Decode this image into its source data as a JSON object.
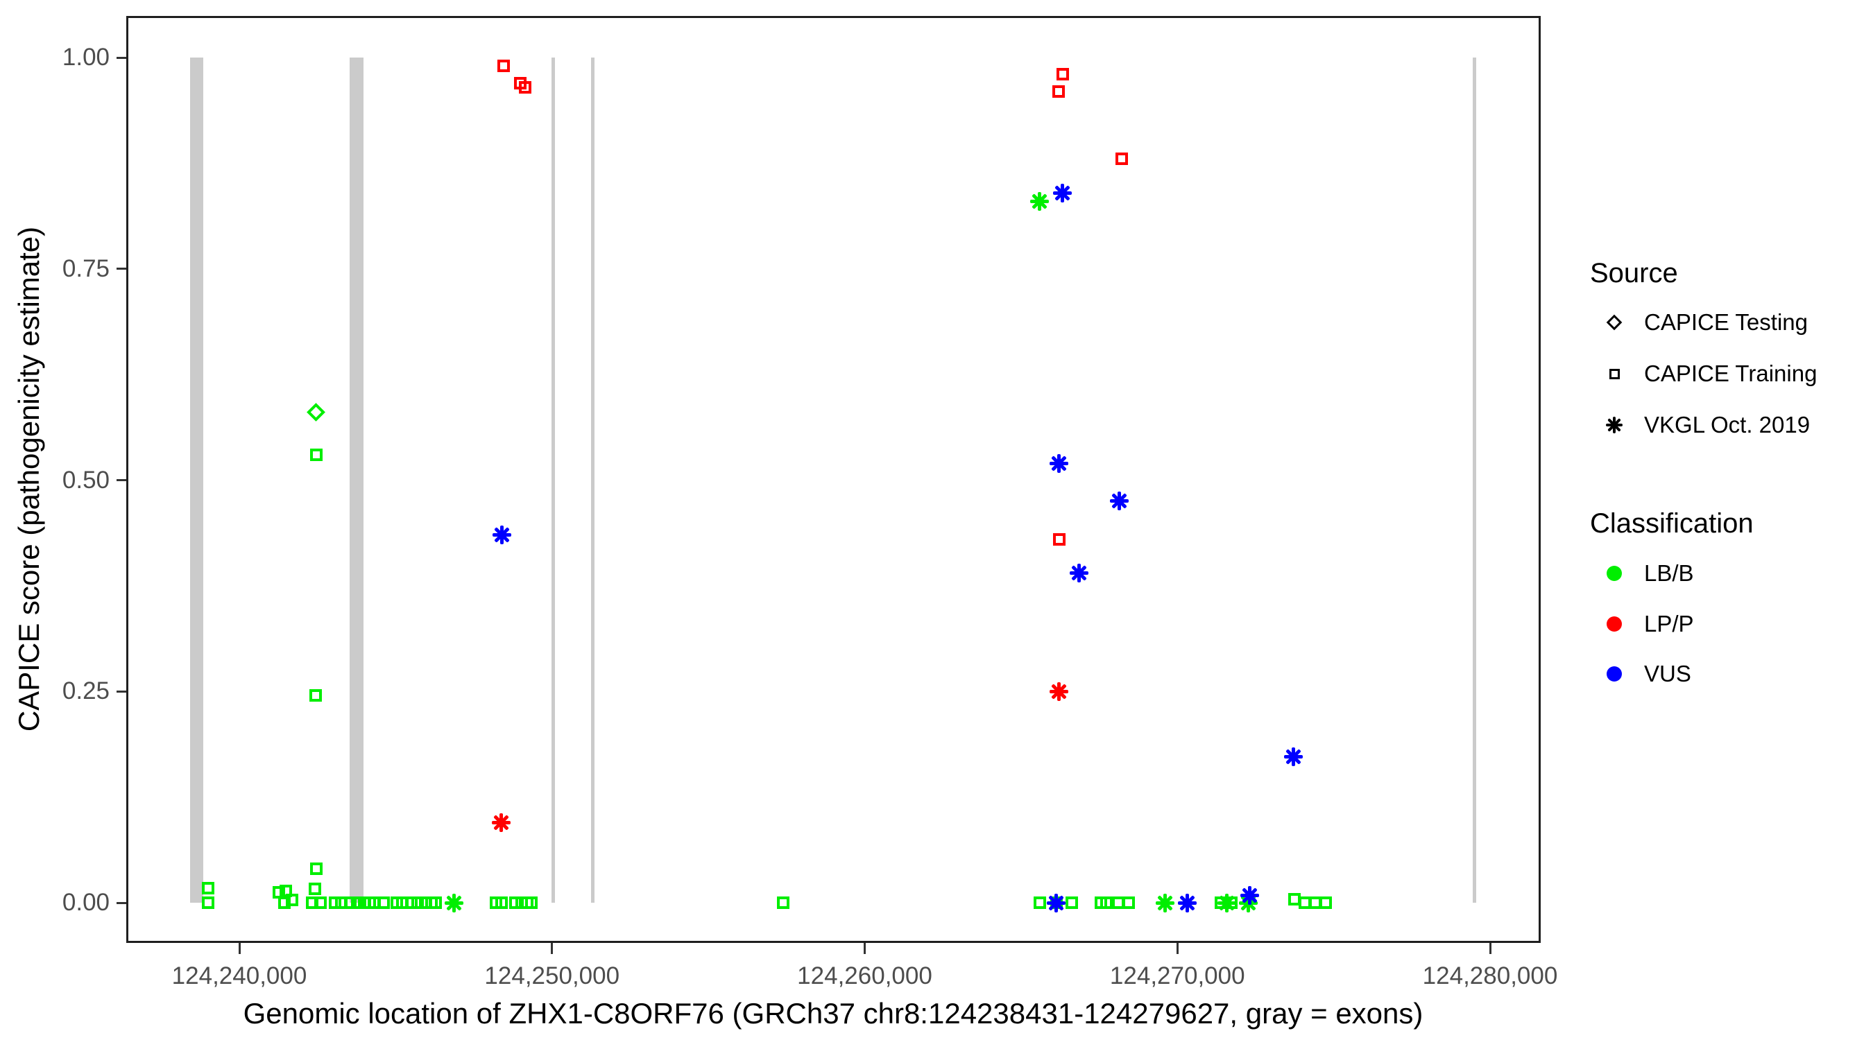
{
  "chart_data": {
    "type": "scatter",
    "title": "",
    "xlabel": "Genomic location of ZHX1-C8ORF76 (GRCh37 chr8:124238431-124279627, gray = exons)",
    "ylabel": "CAPICE score (pathogenicity estimate)",
    "xlim": [
      124236400,
      124281600
    ],
    "ylim": [
      -0.05,
      1.05
    ],
    "grid": "off",
    "x_ticks": [
      124240000,
      124250000,
      124260000,
      124270000,
      124280000
    ],
    "y_ticks": [
      0.0,
      0.25,
      0.5,
      0.75,
      1.0
    ],
    "exon_color": "#cbcbcb",
    "exons_bp": [
      [
        124238427,
        124238848
      ],
      [
        124243524,
        124243967
      ],
      [
        124249994,
        124250105
      ],
      [
        124251257,
        124251368
      ],
      [
        124279444,
        124279555
      ]
    ],
    "series": [
      {
        "source": "CAPICE Training",
        "classification": "LB/B",
        "shape": "square",
        "color": "#00ee00",
        "points": [
          [
            124239003,
            0.017
          ],
          [
            124239003,
            0.0
          ],
          [
            124241263,
            0.012
          ],
          [
            124241486,
            0.014
          ],
          [
            124241440,
            0.0
          ],
          [
            124241684,
            0.003
          ],
          [
            124242327,
            0.0
          ],
          [
            124242416,
            0.016
          ],
          [
            124242438,
            0.245
          ],
          [
            124242460,
            0.53
          ],
          [
            124242460,
            0.04
          ],
          [
            124242593,
            0.0
          ],
          [
            124243058,
            0.0
          ],
          [
            124243257,
            0.0
          ],
          [
            124243545,
            0.0
          ],
          [
            124243767,
            0.0
          ],
          [
            124243989,
            0.0
          ],
          [
            124244166,
            0.0
          ],
          [
            124244321,
            0.0
          ],
          [
            124244609,
            0.0
          ],
          [
            124245030,
            0.0
          ],
          [
            124245207,
            0.0
          ],
          [
            124245495,
            0.0
          ],
          [
            124245695,
            0.0
          ],
          [
            124245939,
            0.0
          ],
          [
            124246138,
            0.0
          ],
          [
            124246271,
            0.0
          ],
          [
            124248199,
            0.0
          ],
          [
            124248377,
            0.0
          ],
          [
            124248820,
            0.0
          ],
          [
            124249019,
            0.0
          ],
          [
            124249196,
            0.0
          ],
          [
            124249351,
            0.0
          ],
          [
            124257396,
            0.0
          ],
          [
            124265596,
            0.0
          ],
          [
            124266127,
            0.0
          ],
          [
            124266615,
            0.0
          ],
          [
            124267545,
            0.0
          ],
          [
            124267723,
            0.0
          ],
          [
            124268099,
            0.0
          ],
          [
            124268432,
            0.0
          ],
          [
            124271401,
            0.0
          ],
          [
            124271733,
            0.0
          ],
          [
            124273749,
            0.004
          ],
          [
            124274082,
            0.0
          ],
          [
            124274414,
            0.0
          ],
          [
            124274746,
            0.0
          ]
        ]
      },
      {
        "source": "CAPICE Training",
        "classification": "LP/P",
        "shape": "square",
        "color": "#ff0000",
        "points": [
          [
            124248443,
            0.99
          ],
          [
            124248975,
            0.97
          ],
          [
            124249130,
            0.965
          ],
          [
            124266327,
            0.98
          ],
          [
            124266194,
            0.96
          ],
          [
            124268211,
            0.88
          ],
          [
            124266216,
            0.43
          ]
        ]
      },
      {
        "source": "CAPICE Testing",
        "classification": "LB/B",
        "shape": "diamond",
        "color": "#00ee00",
        "points": [
          [
            124242460,
            0.58
          ]
        ]
      },
      {
        "source": "VKGL Oct. 2019",
        "classification": "LB/B",
        "shape": "asterisk",
        "color": "#00ee00",
        "points": [
          [
            124265596,
            0.83
          ],
          [
            124246870,
            0.0
          ],
          [
            124269606,
            0.0
          ],
          [
            124271578,
            0.0
          ],
          [
            124272265,
            0.0
          ]
        ]
      },
      {
        "source": "VKGL Oct. 2019",
        "classification": "LP/P",
        "shape": "asterisk",
        "color": "#ff0000",
        "points": [
          [
            124248377,
            0.095
          ],
          [
            124266216,
            0.25
          ]
        ]
      },
      {
        "source": "VKGL Oct. 2019",
        "classification": "VUS",
        "shape": "asterisk",
        "color": "#0000ff",
        "points": [
          [
            124266327,
            0.84
          ],
          [
            124248399,
            0.435
          ],
          [
            124266216,
            0.52
          ],
          [
            124268144,
            0.475
          ],
          [
            124266859,
            0.39
          ],
          [
            124273705,
            0.173
          ],
          [
            124266127,
            0.0
          ],
          [
            124270315,
            0.0
          ],
          [
            124272309,
            0.009
          ]
        ]
      }
    ]
  },
  "legend": {
    "source": {
      "title": "Source",
      "items": [
        {
          "label": "CAPICE Testing",
          "shape": "diamond"
        },
        {
          "label": "CAPICE Training",
          "shape": "square"
        },
        {
          "label": "VKGL Oct. 2019",
          "shape": "asterisk"
        }
      ]
    },
    "classification": {
      "title": "Classification",
      "items": [
        {
          "label": "LB/B",
          "color": "#00ee00"
        },
        {
          "label": "LP/P",
          "color": "#ff0000"
        },
        {
          "label": "VUS",
          "color": "#0000ff"
        }
      ]
    }
  }
}
